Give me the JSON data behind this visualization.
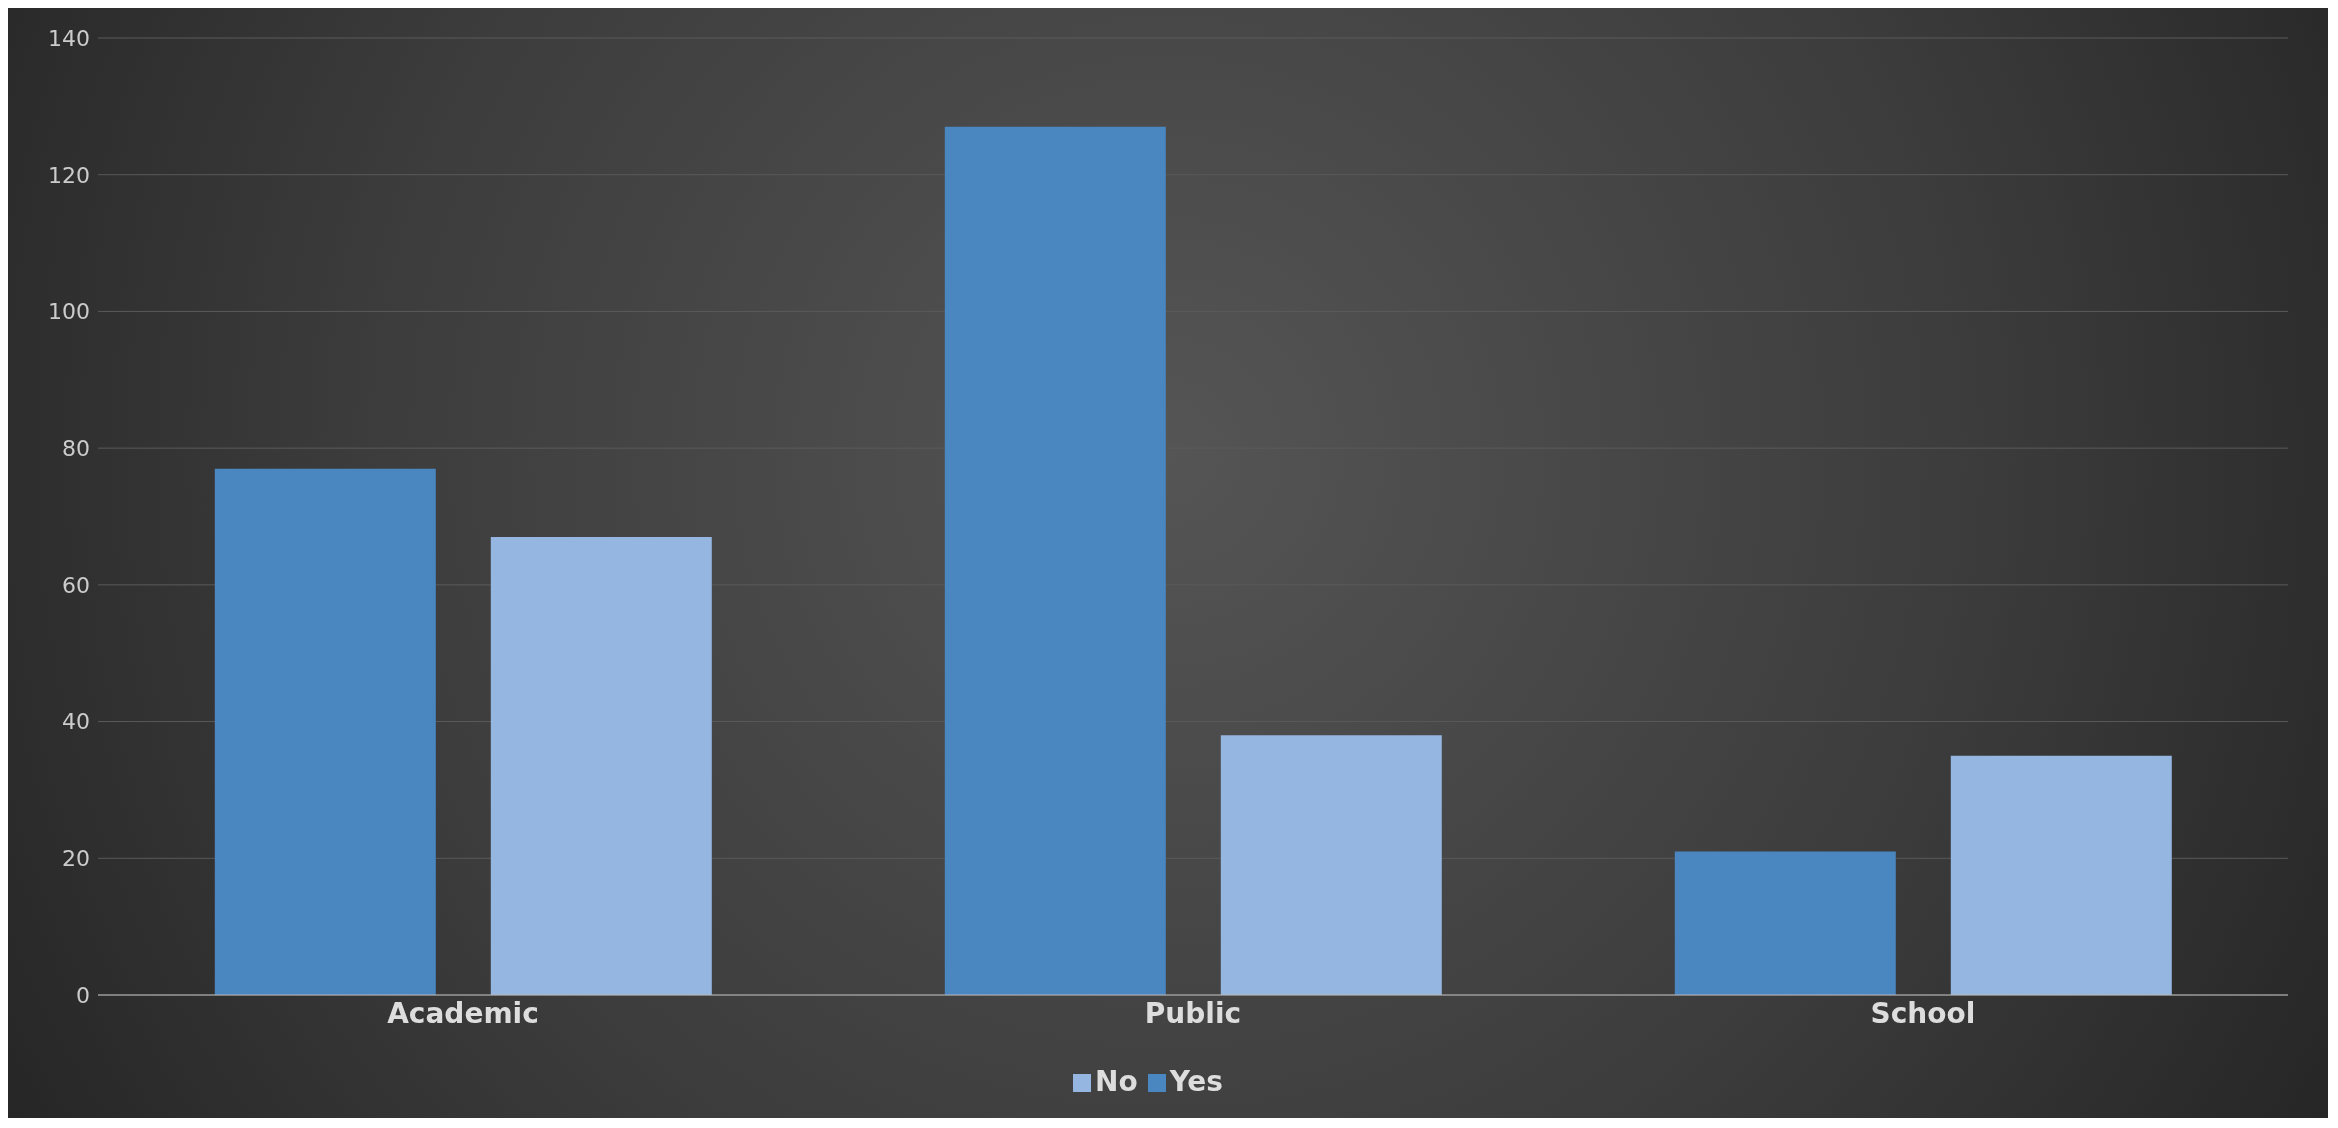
{
  "chart_data": {
    "type": "bar",
    "categories": [
      "Academic",
      "Public",
      "School"
    ],
    "series": [
      {
        "name": "Yes",
        "color": "#4a86c0",
        "values": [
          77,
          127,
          21
        ]
      },
      {
        "name": "No",
        "color": "#94b6e0",
        "values": [
          67,
          38,
          35
        ]
      }
    ],
    "ylim": [
      0,
      140
    ],
    "yticks": [
      0,
      20,
      40,
      60,
      80,
      100,
      120,
      140
    ],
    "grid": "y",
    "legend": "bottom"
  }
}
